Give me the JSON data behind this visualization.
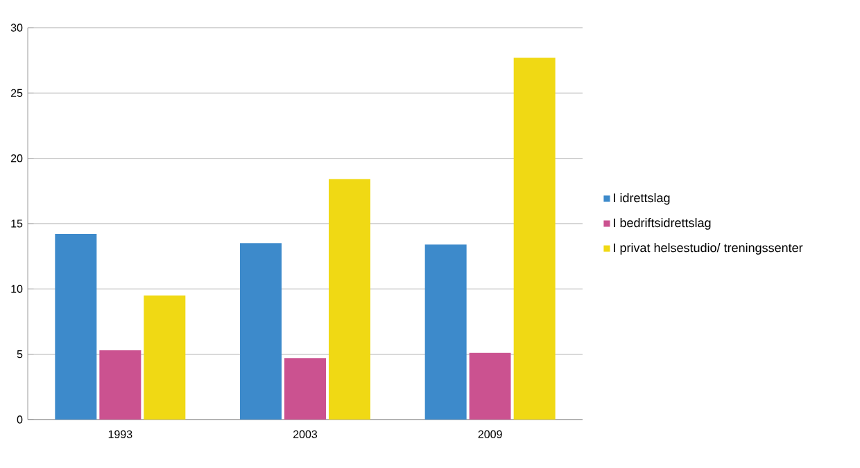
{
  "chart_data": {
    "type": "bar",
    "categories": [
      "1993",
      "2003",
      "2009"
    ],
    "series": [
      {
        "name": "I idrettslag",
        "color": "#3d8acb",
        "values": [
          14.2,
          13.5,
          13.4
        ]
      },
      {
        "name": "I bedriftsidrettslag",
        "color": "#cb5290",
        "values": [
          5.3,
          4.7,
          5.1
        ]
      },
      {
        "name": "I privat helsestudio/ treningssenter",
        "color": "#f0d914",
        "values": [
          9.5,
          18.4,
          27.7
        ]
      }
    ],
    "ylim": [
      0,
      30
    ],
    "yticks": [
      0,
      5,
      10,
      15,
      20,
      25,
      30
    ],
    "grid": "y",
    "legend": "right"
  }
}
